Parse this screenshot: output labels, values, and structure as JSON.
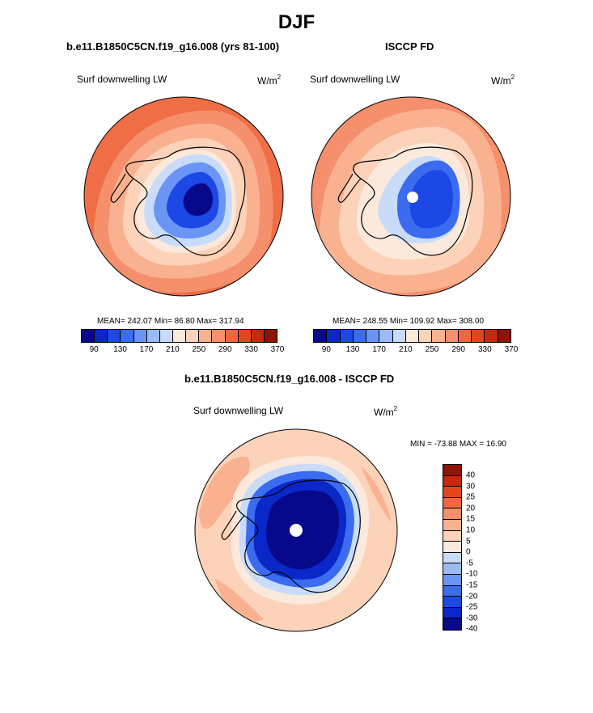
{
  "main_title": "DJF",
  "panel_model": {
    "title": "b.e11.B1850C5CN.f19_g16.008 (yrs 81-100)",
    "variable": "Surf downwelling LW",
    "units": "W/m",
    "units_exp": "2",
    "stats": "MEAN= 242.07  Min=  86.80  Max= 317.94"
  },
  "panel_obs": {
    "title": "ISCCP FD",
    "variable": "Surf downwelling LW",
    "units": "W/m",
    "units_exp": "2",
    "stats": "MEAN= 248.55  Min= 109.92  Max= 308.00"
  },
  "panel_diff": {
    "title": "b.e11.B1850C5CN.f19_g16.008 - ISCCP FD",
    "variable": "Surf downwelling LW",
    "units": "W/m",
    "units_exp": "2",
    "stats": "MIN = -73.88 MAX =  16.90"
  },
  "colorbar_abs": {
    "labels": [
      "90",
      "130",
      "170",
      "210",
      "250",
      "290",
      "330",
      "370"
    ],
    "colors": [
      "#08088a",
      "#0a27c8",
      "#1c48e6",
      "#3b6cf0",
      "#6a95f4",
      "#9bbaf7",
      "#c8dcfa",
      "#fbe9dc",
      "#fcd2b9",
      "#f9b190",
      "#f58f6c",
      "#f0673f",
      "#e5451c",
      "#c52a0c",
      "#8f1403"
    ]
  },
  "colorbar_diff": {
    "labels": [
      "40",
      "30",
      "25",
      "20",
      "15",
      "10",
      "5",
      "0",
      "-5",
      "-10",
      "-15",
      "-20",
      "-25",
      "-30",
      "-40"
    ],
    "colors": [
      "#8f1403",
      "#c52a0c",
      "#e5451c",
      "#f0673f",
      "#f58f6c",
      "#f9b190",
      "#fcd2b9",
      "#fbe9dc",
      "#c8dcfa",
      "#9bbaf7",
      "#6a95f4",
      "#3b6cf0",
      "#1c48e6",
      "#0a27c8",
      "#08088a"
    ]
  }
}
